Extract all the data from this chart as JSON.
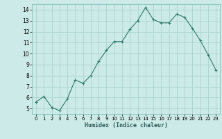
{
  "xlabel": "Humidex (Indice chaleur)",
  "x": [
    0,
    1,
    2,
    3,
    4,
    5,
    6,
    7,
    8,
    9,
    10,
    11,
    12,
    13,
    14,
    15,
    16,
    17,
    18,
    19,
    20,
    21,
    22,
    23
  ],
  "y": [
    5.6,
    6.1,
    5.1,
    4.8,
    5.9,
    7.6,
    7.3,
    8.0,
    9.3,
    10.3,
    11.1,
    11.1,
    12.2,
    13.0,
    14.2,
    13.1,
    12.8,
    12.8,
    13.6,
    13.3,
    12.3,
    11.2,
    9.9,
    8.5
  ],
  "line_color": "#2d7a6e",
  "marker_color": "#2d7a6e",
  "bg_color": "#cceae7",
  "grid_color": "#aad4d0",
  "ylim": [
    4.5,
    14.5
  ],
  "xlim": [
    -0.5,
    23.5
  ],
  "yticks": [
    5,
    6,
    7,
    8,
    9,
    10,
    11,
    12,
    13,
    14
  ],
  "xticks": [
    0,
    1,
    2,
    3,
    4,
    5,
    6,
    7,
    8,
    9,
    10,
    11,
    12,
    13,
    14,
    15,
    16,
    17,
    18,
    19,
    20,
    21,
    22,
    23
  ]
}
